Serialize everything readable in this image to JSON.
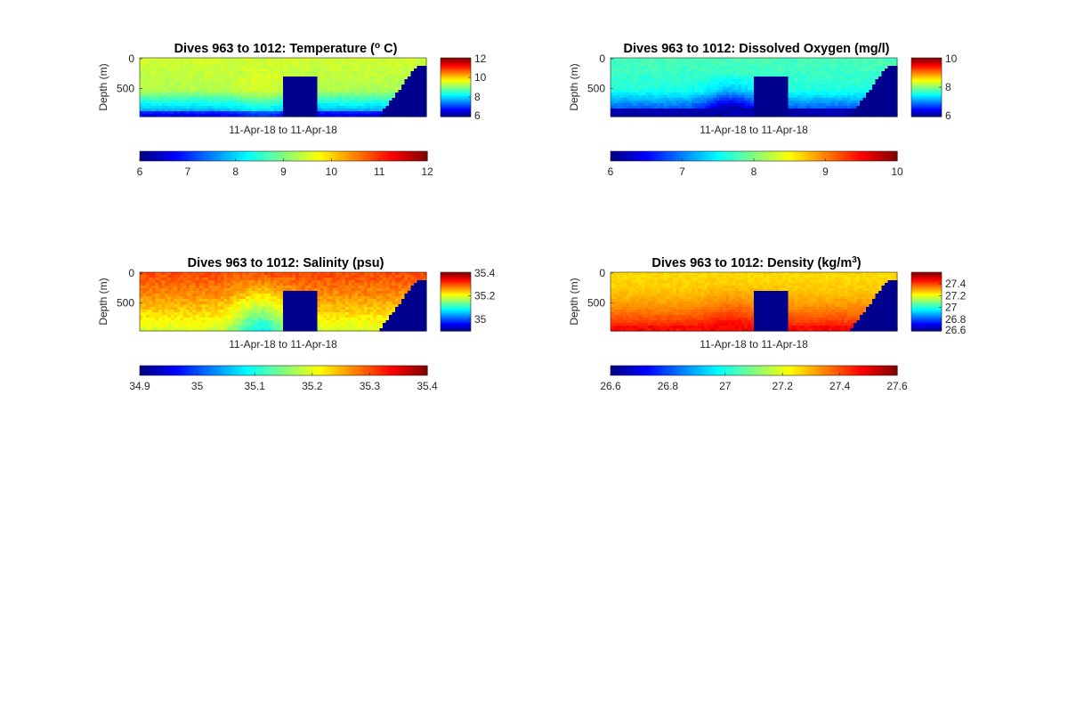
{
  "colormap": "jet",
  "chart_data": [
    {
      "type": "heatmap",
      "title": "Dives 963 to 1012: Temperature (",
      "title_super": "o",
      "title_tail": " C)",
      "ylabel": "Depth (m)",
      "xlabel": "11-Apr-18 to 11-Apr-18",
      "y_ticks": [
        "0",
        "500"
      ],
      "y_tick_values": [
        0,
        500
      ],
      "depth_range": [
        0,
        1000
      ],
      "clim": [
        6,
        12
      ],
      "field": "temperature",
      "side_colorbar_ticks": [
        "12",
        "10",
        "8",
        "6"
      ],
      "side_colorbar_values": [
        12,
        10,
        8,
        6
      ],
      "bottom_colorbar_ticks": [
        "6",
        "7",
        "8",
        "9",
        "10",
        "11",
        "12"
      ],
      "bottom_colorbar_values": [
        6,
        7,
        8,
        9,
        10,
        11,
        12
      ]
    },
    {
      "type": "heatmap",
      "title": "Dives 963 to 1012: Dissolved Oxygen (mg/l)",
      "ylabel": "Depth (m)",
      "xlabel": "11-Apr-18 to 11-Apr-18",
      "y_ticks": [
        "0",
        "500"
      ],
      "y_tick_values": [
        0,
        500
      ],
      "depth_range": [
        0,
        1000
      ],
      "clim": [
        6,
        10
      ],
      "field": "oxygen",
      "side_colorbar_ticks": [
        "10",
        "8",
        "6"
      ],
      "side_colorbar_values": [
        10,
        8,
        6
      ],
      "bottom_colorbar_ticks": [
        "6",
        "7",
        "8",
        "9",
        "10"
      ],
      "bottom_colorbar_values": [
        6,
        7,
        8,
        9,
        10
      ]
    },
    {
      "type": "heatmap",
      "title": "Dives 963 to 1012: Salinity (psu)",
      "ylabel": "Depth (m)",
      "xlabel": "11-Apr-18 to 11-Apr-18",
      "y_ticks": [
        "0",
        "500"
      ],
      "y_tick_values": [
        0,
        500
      ],
      "depth_range": [
        0,
        1000
      ],
      "clim": [
        34.9,
        35.4
      ],
      "field": "salinity",
      "side_colorbar_ticks": [
        "35.4",
        "35.2",
        "35"
      ],
      "side_colorbar_values": [
        35.4,
        35.2,
        35.0
      ],
      "bottom_colorbar_ticks": [
        "34.9",
        "35",
        "35.1",
        "35.2",
        "35.3",
        "35.4"
      ],
      "bottom_colorbar_values": [
        34.9,
        35.0,
        35.1,
        35.2,
        35.3,
        35.4
      ]
    },
    {
      "type": "heatmap",
      "title": "Dives 963 to 1012: Density (kg/m",
      "title_super": "3",
      "title_tail": ")",
      "ylabel": "Depth (m)",
      "xlabel": "11-Apr-18 to 11-Apr-18",
      "y_ticks": [
        "0",
        "500"
      ],
      "y_tick_values": [
        0,
        500
      ],
      "depth_range": [
        0,
        1000
      ],
      "clim": [
        26.6,
        27.6
      ],
      "field": "density",
      "side_colorbar_ticks": [
        "27.4",
        "27.2",
        "27",
        "26.8",
        "26.6"
      ],
      "side_colorbar_values": [
        27.4,
        27.2,
        27.0,
        26.8,
        26.6
      ],
      "bottom_colorbar_ticks": [
        "26.6",
        "26.8",
        "27",
        "27.2",
        "27.4",
        "27.6"
      ],
      "bottom_colorbar_values": [
        26.6,
        26.8,
        27.0,
        27.2,
        27.4,
        27.6
      ]
    }
  ]
}
